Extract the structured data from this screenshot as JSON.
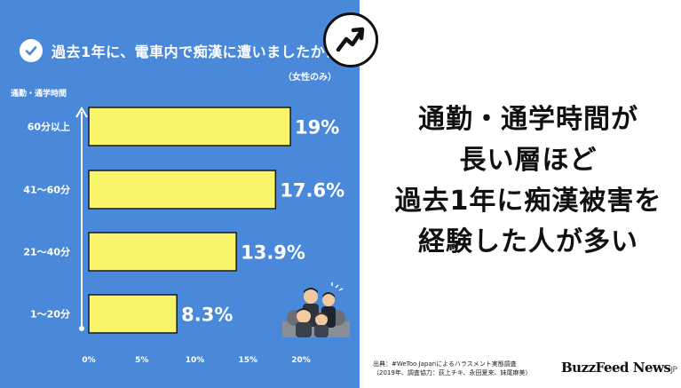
{
  "question": {
    "title": "過去1年に、電車内で痴漢に遭いましたか？",
    "subtitle": "（女性のみ）"
  },
  "headline": [
    "通勤・通学時間が",
    "長い層ほど",
    "過去1年に痴漢被害を",
    "経験した人が多い"
  ],
  "source": {
    "line1": "出典：#WeToo Japanによるハラスメント実態調査",
    "line2": "（2019年、調査協力：荻上チキ、永田夏来、妹尾麻美）"
  },
  "logo": {
    "main": "BuzzFeed News",
    "suffix": "JP"
  },
  "icons": {
    "check": "checkmark-circle-icon",
    "trend": "trending-up-icon",
    "illustration": "commuters-illustration"
  },
  "colors": {
    "panel": "#4a89d9",
    "bar": "#f9f56a",
    "bar_border": "#1a1a1a",
    "text_light": "#ffffff"
  },
  "chart_data": {
    "type": "bar",
    "orientation": "horizontal",
    "ylabel": "通勤・通学時間",
    "categories": [
      "60分以上",
      "41〜60分",
      "21〜40分",
      "1〜20分"
    ],
    "values": [
      19,
      17.6,
      13.9,
      8.3
    ],
    "value_labels": [
      "19%",
      "17.6%",
      "13.9%",
      "8.3%"
    ],
    "xticks": [
      "0%",
      "5%",
      "10%",
      "15%",
      "20%"
    ],
    "xlim": [
      0,
      20
    ],
    "grid": false
  }
}
